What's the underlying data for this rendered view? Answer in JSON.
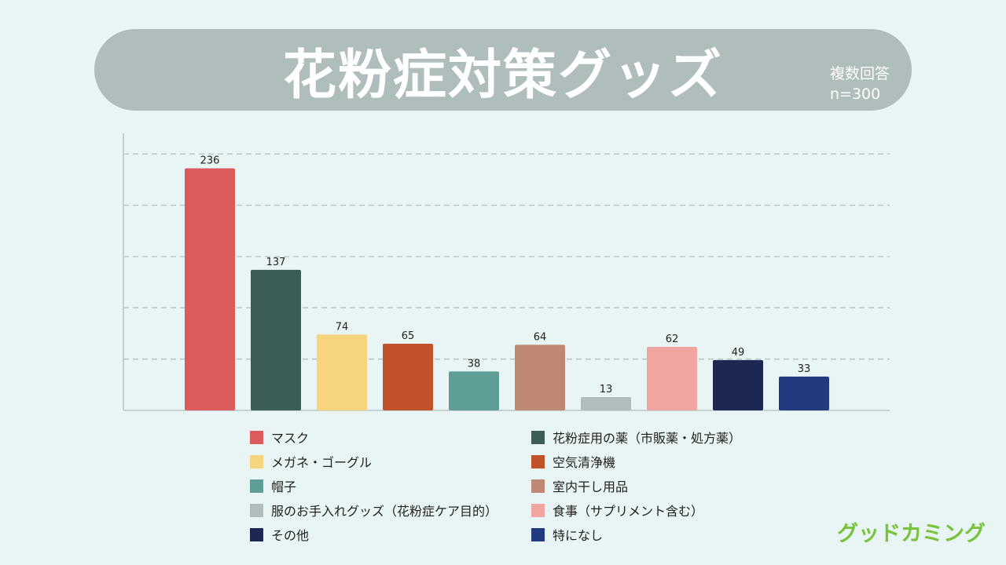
{
  "header": {
    "title": "花粉症対策グッズ",
    "note_line1": "複数回答",
    "note_line2": "n=300"
  },
  "chart_data": {
    "type": "bar",
    "categories": [
      "マスク",
      "花粉症用の薬（市販薬・処方薬）",
      "メガネ・ゴーグル",
      "空気清浄機",
      "帽子",
      "室内干し用品",
      "服のお手入れグッズ（花粉症ケア目的）",
      "食事（サプリメント含む）",
      "その他",
      "特になし"
    ],
    "values": [
      236,
      137,
      74,
      65,
      38,
      64,
      13,
      62,
      49,
      33
    ],
    "colors": [
      "#d95b5b",
      "#3c5c58",
      "#f7d57e",
      "#c0522c",
      "#5f9e96",
      "#bf8874",
      "#afbdbc",
      "#f1a5a0",
      "#1c2754",
      "#233a80"
    ],
    "title": "花粉症対策グッズ",
    "xlabel": "",
    "ylabel": "",
    "ylim": [
      0,
      250
    ],
    "grid": true,
    "data_labels": true,
    "legend_position": "bottom"
  },
  "branding": {
    "logo_text": "グッドカミング",
    "logo_color": "#78c43c"
  }
}
